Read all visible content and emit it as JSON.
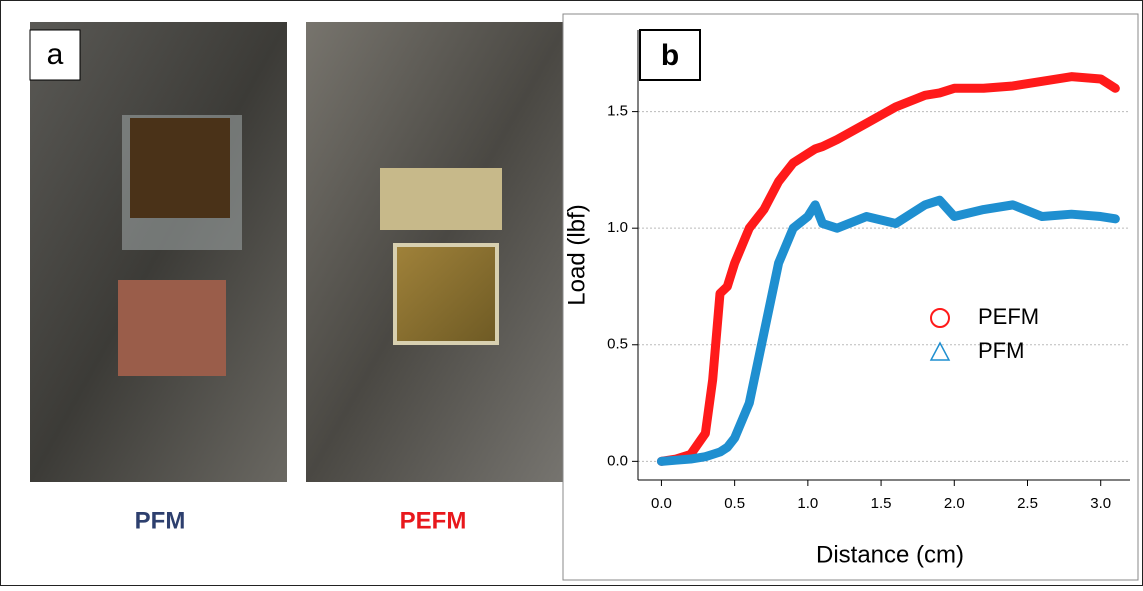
{
  "panel_a": {
    "label": "a",
    "captions": [
      "PFM",
      "PEFM"
    ]
  },
  "chart_data": {
    "type": "line",
    "panel_label": "b",
    "x_label": "Distance (cm)",
    "y_label": "Load (lbf)",
    "x": [
      0,
      0.1,
      0.2,
      0.3,
      0.35,
      0.4,
      0.45,
      0.5,
      0.6,
      0.7,
      0.8,
      0.9,
      1.0,
      1.05,
      1.1,
      1.2,
      1.4,
      1.6,
      1.8,
      1.9,
      2.0,
      2.2,
      2.4,
      2.6,
      2.8,
      3.0,
      3.1
    ],
    "series": [
      {
        "name": "PEFM",
        "color": "#ff1a1a",
        "marker": "circle",
        "values": [
          0,
          0.01,
          0.03,
          0.12,
          0.35,
          0.72,
          0.75,
          0.85,
          1.0,
          1.08,
          1.2,
          1.28,
          1.32,
          1.34,
          1.35,
          1.38,
          1.45,
          1.52,
          1.57,
          1.58,
          1.6,
          1.6,
          1.61,
          1.63,
          1.65,
          1.64,
          1.6
        ]
      },
      {
        "name": "PFM",
        "color": "#1f8fd0",
        "marker": "triangle",
        "values": [
          0,
          0.005,
          0.01,
          0.02,
          0.03,
          0.04,
          0.06,
          0.1,
          0.25,
          0.55,
          0.85,
          1.0,
          1.05,
          1.1,
          1.02,
          1.0,
          1.05,
          1.02,
          1.1,
          1.12,
          1.05,
          1.08,
          1.1,
          1.05,
          1.06,
          1.05,
          1.04
        ]
      }
    ],
    "xlim": [
      -0.16,
      3.2
    ],
    "ylim": [
      -0.08,
      1.85
    ],
    "xticks": [
      {
        "value": 0,
        "label": "0.0"
      },
      {
        "value": 0.5,
        "label": "0.5"
      },
      {
        "value": 1,
        "label": "1.0"
      },
      {
        "value": 1.5,
        "label": "1.5"
      },
      {
        "value": 2,
        "label": "2.0"
      },
      {
        "value": 2.5,
        "label": "2.5"
      },
      {
        "value": 3,
        "label": "3.0"
      }
    ],
    "yticks": [
      {
        "value": 0,
        "label": "0.0"
      },
      {
        "value": 0.5,
        "label": "0.5"
      },
      {
        "value": 1,
        "label": "1.0"
      },
      {
        "value": 1.5,
        "label": "1.5"
      }
    ],
    "grid": true,
    "legend": "right"
  }
}
